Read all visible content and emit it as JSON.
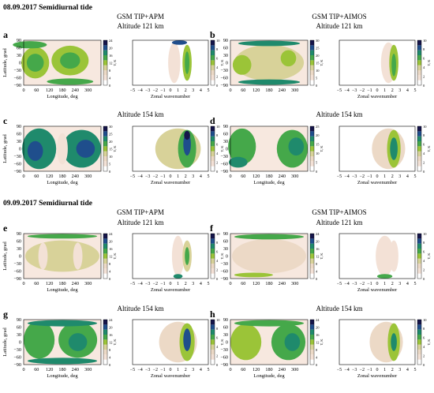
{
  "headers": [
    {
      "date_title": "08.09.2017 Semidiurnal tide",
      "col_titles": [
        "GSM TIP+APM",
        "GSM TIP+AIMOS"
      ],
      "row_titles": [
        [
          "Altitude 121 km",
          "Altitude 121 km"
        ],
        [
          "Altitude 154 km",
          "Altitude 154 km"
        ]
      ]
    },
    {
      "date_title": "09.09.2017 Semidiurnal tide",
      "col_titles": [
        "GSM TIP+APM",
        "GSM TIP+AIMOS"
      ],
      "row_titles": [
        [
          "Altitude 121 km",
          "Altitude 121 km"
        ],
        [
          "Altitude 154 km",
          "Altitude 154 km"
        ]
      ]
    }
  ],
  "panel_letters": [
    "a",
    "b",
    "c",
    "d",
    "e",
    "f",
    "g",
    "h"
  ],
  "axes": {
    "map_ylabel": "Latitude, grad",
    "map_xlabel": "Longitude, deg",
    "spec_xlabel": "Zonal wavenumber",
    "colorbar_label": "T, K",
    "map_xticks": [
      "0",
      "60",
      "120",
      "180",
      "240",
      "300"
    ],
    "lat_ticks": [
      "90",
      "60",
      "30",
      "0",
      "−30",
      "−60",
      "−90"
    ],
    "wave_ticks": [
      "−5",
      "−4",
      "−3",
      "−2",
      "−1",
      "0",
      "1",
      "2",
      "3",
      "4",
      "5"
    ]
  },
  "colors": {
    "scale": [
      "#ffffff",
      "#f3e1d6",
      "#ecd9c6",
      "#d8d299",
      "#9bc438",
      "#45a84a",
      "#1f8a6c",
      "#1f4e8c",
      "#15154a"
    ]
  },
  "chart_data": [
    {
      "panel": "a",
      "type": "heatmap",
      "title": "Altitude 121 km",
      "model": "GSM TIP+APM",
      "date": "08.09.2017",
      "left": {
        "xlabel": "Longitude, deg",
        "ylabel": "Latitude, grad",
        "xlim": [
          0,
          360
        ],
        "ylim": [
          -90,
          90
        ],
        "colorbar": {
          "label": "T, K",
          "ticks": [
            0,
            4,
            8,
            12,
            16,
            20,
            24
          ]
        }
      },
      "right": {
        "xlabel": "Zonal wavenumber",
        "xlim": [
          -5,
          5
        ],
        "ylim": [
          -90,
          90
        ],
        "colorbar": {
          "label": "T, K",
          "ticks": [
            0,
            2,
            4,
            6,
            8,
            10
          ]
        }
      }
    },
    {
      "panel": "b",
      "type": "heatmap",
      "title": "Altitude 121 km",
      "model": "GSM TIP+AIMOS",
      "date": "08.09.2017",
      "left": {
        "xlabel": "",
        "ylabel": "",
        "xlim": [
          0,
          360
        ],
        "ylim": [
          -90,
          90
        ],
        "colorbar": {
          "label": "T, K",
          "ticks": [
            0,
            5,
            10,
            15,
            20,
            25,
            30
          ]
        }
      },
      "right": {
        "xlabel": "Zonal wavenumber",
        "xlim": [
          -5,
          5
        ],
        "ylim": [
          -90,
          90
        ],
        "colorbar": {
          "label": "T, K",
          "ticks": [
            0,
            2,
            4,
            6,
            8,
            10
          ]
        }
      }
    },
    {
      "panel": "c",
      "type": "heatmap",
      "title": "Altitude 154 km",
      "model": "GSM TIP+APM",
      "date": "08.09.2017",
      "left": {
        "xlabel": "Longitude, deg",
        "ylabel": "Latitude, grad",
        "xlim": [
          0,
          360
        ],
        "ylim": [
          -90,
          90
        ],
        "colorbar": {
          "label": "T, K",
          "ticks": [
            0,
            5,
            10,
            15,
            20,
            25,
            30
          ]
        }
      },
      "right": {
        "xlabel": "Zonal wavenumber",
        "xlim": [
          -5,
          5
        ],
        "ylim": [
          -90,
          90
        ],
        "colorbar": {
          "label": "T, K",
          "ticks": [
            0,
            2,
            4,
            6,
            8,
            10
          ]
        }
      }
    },
    {
      "panel": "d",
      "type": "heatmap",
      "title": "Altitude 154 km",
      "model": "GSM TIP+AIMOS",
      "date": "08.09.2017",
      "left": {
        "xlabel": "Longitude, deg",
        "ylabel": "",
        "xlim": [
          0,
          360
        ],
        "ylim": [
          -90,
          90
        ],
        "colorbar": {
          "label": "T, K",
          "ticks": [
            0,
            5,
            10,
            15,
            20,
            25
          ]
        }
      },
      "right": {
        "xlabel": "Zonal wavenumber",
        "xlim": [
          -5,
          5
        ],
        "ylim": [
          -90,
          90
        ],
        "colorbar": {
          "label": "T, K",
          "ticks": [
            0,
            2,
            4,
            6,
            8,
            10
          ]
        }
      }
    },
    {
      "panel": "e",
      "type": "heatmap",
      "title": "Altitude 121 km",
      "model": "GSM TIP+APM",
      "date": "09.09.2017",
      "left": {
        "xlabel": "Longitude, deg",
        "ylabel": "Latitude, grad",
        "xlim": [
          0,
          360
        ],
        "ylim": [
          -90,
          90
        ],
        "colorbar": {
          "label": "T, K",
          "ticks": [
            0,
            4,
            8,
            12,
            16,
            20,
            24
          ]
        }
      },
      "right": {
        "xlabel": "Zonal wavenumber",
        "xlim": [
          -5,
          5
        ],
        "ylim": [
          -90,
          90
        ],
        "colorbar": {
          "label": "T, K",
          "ticks": [
            0,
            2,
            4,
            6,
            8,
            10
          ]
        }
      }
    },
    {
      "panel": "f",
      "type": "heatmap",
      "title": "Altitude 121 km",
      "model": "GSM TIP+AIMOS",
      "date": "09.09.2017",
      "left": {
        "xlabel": "",
        "ylabel": "",
        "xlim": [
          0,
          360
        ],
        "ylim": [
          -90,
          90
        ],
        "colorbar": {
          "label": "T, K",
          "ticks": [
            0,
            4,
            8,
            12,
            16,
            20,
            24
          ]
        }
      },
      "right": {
        "xlabel": "Zonal wavenumber",
        "xlim": [
          -5,
          5
        ],
        "ylim": [
          -90,
          90
        ],
        "colorbar": {
          "label": "T, K",
          "ticks": [
            0,
            2,
            4,
            6,
            8,
            10
          ]
        }
      }
    },
    {
      "panel": "g",
      "type": "heatmap",
      "title": "Altitude 154 km",
      "model": "GSM TIP+APM",
      "date": "09.09.2017",
      "left": {
        "xlabel": "Longitude, deg",
        "ylabel": "Latitude, grad",
        "xlim": [
          0,
          360
        ],
        "ylim": [
          -90,
          90
        ],
        "colorbar": {
          "label": "T, K",
          "ticks": [
            0,
            4,
            8,
            12,
            16,
            20,
            24
          ]
        }
      },
      "right": {
        "xlabel": "Zonal wavenumber",
        "xlim": [
          -5,
          5
        ],
        "ylim": [
          -90,
          90
        ],
        "colorbar": {
          "label": "T, K",
          "ticks": [
            0,
            2,
            4,
            6,
            8,
            10
          ]
        }
      }
    },
    {
      "panel": "h",
      "type": "heatmap",
      "title": "Altitude 154 km",
      "model": "GSM TIP+AIMOS",
      "date": "09.09.2017",
      "left": {
        "xlabel": "Longitude, deg",
        "ylabel": "",
        "xlim": [
          0,
          360
        ],
        "ylim": [
          -90,
          90
        ],
        "colorbar": {
          "label": "T, K",
          "ticks": [
            0,
            4,
            8,
            12,
            16,
            20,
            24
          ]
        }
      },
      "right": {
        "xlabel": "Zonal wavenumber",
        "xlim": [
          -5,
          5
        ],
        "ylim": [
          -90,
          90
        ],
        "colorbar": {
          "label": "T, K",
          "ticks": [
            0,
            2,
            4,
            6,
            8,
            10
          ]
        }
      }
    }
  ]
}
